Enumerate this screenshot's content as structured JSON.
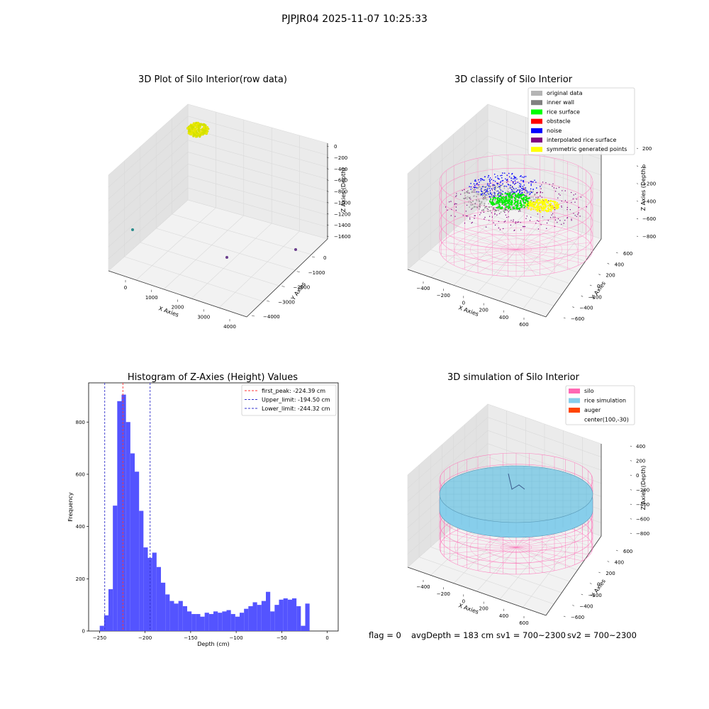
{
  "suptitle": "PJPJR04 2025-11-07 10:25:33",
  "status_line": {
    "flag": "flag = 0",
    "avg_depth": "avgDepth = 183 cm",
    "sv1": "sv1 = 700~2300",
    "sv2": "sv2 = 700~2300"
  },
  "panels": {
    "raw": {
      "title": "3D Plot of Silo Interior(row data)",
      "xlabel": "X Axies",
      "ylabel": "Y Axies",
      "zlabel": "Z Axies (Depth)",
      "xticks": [
        "0",
        "1000",
        "2000",
        "3000",
        "4000"
      ],
      "yticks": [
        "0",
        "−1000",
        "−2000",
        "−3000",
        "−4000"
      ],
      "zticks": [
        "0",
        "−200",
        "−400",
        "−600",
        "−800",
        "−1000",
        "−1200",
        "−1400",
        "−1600"
      ]
    },
    "classify": {
      "title": "3D classify of Silo Interior",
      "xlabel": "X Axies",
      "ylabel": "Y Axies",
      "zlabel": "Z Axies (Depth)",
      "xticks": [
        "−400",
        "−200",
        "0",
        "200",
        "400",
        "600"
      ],
      "yticks": [
        "600",
        "400",
        "200",
        "0",
        "−200",
        "−400",
        "−600"
      ],
      "zticks": [
        "200",
        "0",
        "−200",
        "−400",
        "−600",
        "−800"
      ],
      "legend": [
        {
          "label": "original data",
          "color": "#b4b4b4"
        },
        {
          "label": "inner wall",
          "color": "#808080"
        },
        {
          "label": "rice surface",
          "color": "#00ff00"
        },
        {
          "label": "obstacle",
          "color": "#ff0000"
        },
        {
          "label": "noise",
          "color": "#0000ff"
        },
        {
          "label": "interpolated rice surface",
          "color": "#800080"
        },
        {
          "label": "symmetric generated points",
          "color": "#ffff00"
        }
      ]
    },
    "simulation": {
      "title": "3D simulation of Silo Interior",
      "xlabel": "X Axies",
      "ylabel": "Y Axies",
      "zlabel": "Z Axies (Depth)",
      "xticks": [
        "−400",
        "−200",
        "0",
        "200",
        "400",
        "600"
      ],
      "yticks": [
        "600",
        "400",
        "200",
        "0",
        "−200",
        "−400",
        "−600"
      ],
      "zticks": [
        "400",
        "200",
        "0",
        "−200",
        "−400",
        "−600",
        "−800"
      ],
      "legend": [
        {
          "label": "silo",
          "color": "#ff69b4"
        },
        {
          "label": "rice simulation",
          "color": "#87ceeb"
        },
        {
          "label": "auger",
          "color": "#ff4500"
        },
        {
          "label": "center(100,-30)",
          "color": ""
        }
      ]
    }
  },
  "chart_data": [
    {
      "type": "scatter",
      "subtype": "3d",
      "title": "3D Plot of Silo Interior(row data)",
      "xlabel": "X Axies",
      "ylabel": "Y Axies",
      "zlabel": "Z Axies (Depth)",
      "xlim": [
        -500,
        4300
      ],
      "ylim": [
        -4400,
        400
      ],
      "zlim": [
        -1700,
        100
      ],
      "series": [
        {
          "color": "#d4e000",
          "points": [
            [
              0,
              0,
              -220
            ],
            [
              60,
              -40,
              -200
            ],
            [
              -40,
              30,
              -240
            ],
            [
              20,
              20,
              -180
            ]
          ]
        },
        {
          "color": "#2a8c8c",
          "points": [
            [
              -200,
              -1700,
              -1600
            ]
          ]
        },
        {
          "color": "#6a3d8c",
          "points": [
            [
              2200,
              -2500,
              -1650
            ]
          ]
        },
        {
          "color": "#6a3d8c",
          "points": [
            [
              3900,
              -700,
              -1650
            ]
          ]
        }
      ]
    },
    {
      "type": "scatter",
      "subtype": "3d",
      "title": "3D classify of Silo Interior",
      "xlabel": "X Axies",
      "ylabel": "Y Axies",
      "zlabel": "Z Axies (Depth)",
      "xlim": [
        -500,
        700
      ],
      "ylim": [
        -700,
        700
      ],
      "zlim": [
        -900,
        300
      ],
      "legend_position": "top-right",
      "series": [
        {
          "name": "original data",
          "color": "#b4b4b4"
        },
        {
          "name": "inner wall",
          "color": "#808080"
        },
        {
          "name": "rice surface",
          "color": "#00ff00"
        },
        {
          "name": "obstacle",
          "color": "#ff0000"
        },
        {
          "name": "noise",
          "color": "#0000ff"
        },
        {
          "name": "interpolated rice surface",
          "color": "#800080"
        },
        {
          "name": "symmetric generated points",
          "color": "#ffff00"
        }
      ]
    },
    {
      "type": "bar",
      "subtype": "histogram",
      "title": "Histogram of Z-Axies (Height) Values",
      "xlabel": "Depth (cm)",
      "ylabel": "Frequency",
      "xlim": [
        -262,
        12
      ],
      "ylim": [
        0,
        950
      ],
      "xticks": [
        -250,
        -200,
        -150,
        -100,
        -50,
        0
      ],
      "yticks": [
        0,
        200,
        400,
        600,
        800
      ],
      "bar_color": "#4b4bff",
      "bin_width": 4.8,
      "bin_start": -249.8,
      "values": [
        20,
        60,
        160,
        480,
        880,
        905,
        800,
        680,
        610,
        460,
        320,
        280,
        300,
        245,
        185,
        140,
        115,
        105,
        115,
        95,
        75,
        65,
        65,
        55,
        70,
        65,
        75,
        70,
        75,
        80,
        65,
        55,
        70,
        85,
        95,
        110,
        100,
        115,
        150,
        75,
        100,
        120,
        125,
        120,
        125,
        95,
        20,
        105
      ],
      "vlines": [
        {
          "label": "first_peak: -224.39 cm",
          "x": -224.39,
          "color": "#ff3333"
        },
        {
          "label": "Upper_limit: -194.50 cm",
          "x": -194.5,
          "color": "#3333cc"
        },
        {
          "label": "Lower_limit: -244.32 cm",
          "x": -244.32,
          "color": "#3333cc"
        }
      ],
      "legend_position": "top-right"
    },
    {
      "type": "scatter",
      "subtype": "3d",
      "title": "3D simulation of Silo Interior",
      "xlabel": "X Axies",
      "ylabel": "Y Axies",
      "zlabel": "Z Axies (Depth)",
      "xlim": [
        -500,
        700
      ],
      "ylim": [
        -700,
        700
      ],
      "zlim": [
        -900,
        450
      ],
      "legend_position": "top-right",
      "series": [
        {
          "name": "silo",
          "color": "#ff69b4"
        },
        {
          "name": "rice simulation",
          "color": "#87ceeb"
        },
        {
          "name": "auger",
          "color": "#ff4500"
        },
        {
          "name": "center(100,-30)",
          "color": ""
        }
      ]
    }
  ]
}
